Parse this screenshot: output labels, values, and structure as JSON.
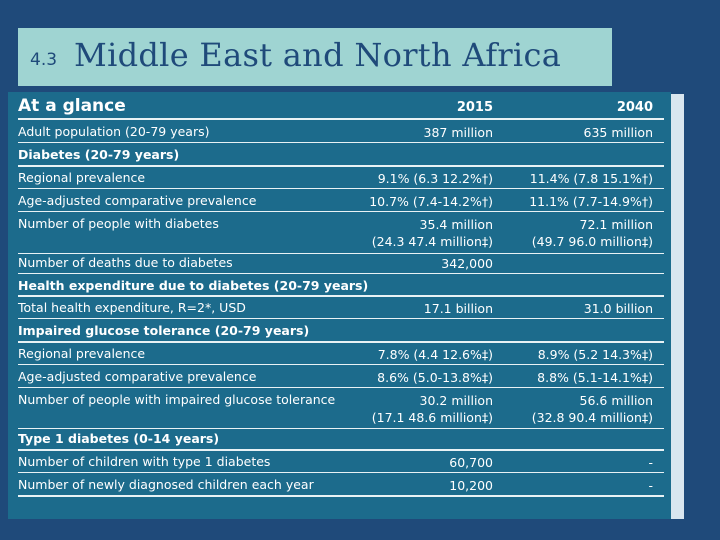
{
  "title": {
    "number": "4.3",
    "text": "Middle East and North Africa"
  },
  "table": {
    "heading": "At a glance",
    "year1": "2015",
    "year2": "2040",
    "adult_population": {
      "label": "Adult population (20-79 years)",
      "v2015": "387 million",
      "v2040": "635 million"
    },
    "diabetes_section": "Diabetes (20-79 years)",
    "regional_prevalence": {
      "label": "Regional prevalence",
      "v2015": "9.1% (6.3 12.2%†)",
      "v2040": "11.4% (7.8 15.1%†)"
    },
    "age_adjusted": {
      "label": "Age-adjusted comparative prevalence",
      "v2015": "10.7% (7.4-14.2%†)",
      "v2040": "11.1% (7.7-14.9%†)"
    },
    "people_with_diabetes": {
      "label": "Number of people with diabetes",
      "v2015_a": "35.4 million",
      "v2015_b": "(24.3 47.4 million‡)",
      "v2040_a": "72.1 million",
      "v2040_b": "(49.7 96.0 million‡)"
    },
    "deaths": {
      "label": "Number of deaths due to diabetes",
      "v2015": "342,000"
    },
    "expenditure_section": "Health expenditure due to diabetes (20-79 years)",
    "total_expenditure": {
      "label": "Total health expenditure, R=2*, USD",
      "v2015": "17.1 billion",
      "v2040": "31.0 billion"
    },
    "igt_section": "Impaired glucose tolerance (20-79 years)",
    "igt_regional": {
      "label": "Regional prevalence",
      "v2015": "7.8% (4.4 12.6%‡)",
      "v2040": "8.9% (5.2 14.3%‡)"
    },
    "igt_age_adjusted": {
      "label": "Age-adjusted comparative prevalence",
      "v2015": "8.6% (5.0-13.8%‡)",
      "v2040": "8.8% (5.1-14.1%‡)"
    },
    "igt_people": {
      "label": "Number of people with impaired glucose tolerance",
      "v2015_a": "30.2 million",
      "v2015_b": "(17.1 48.6 million‡)",
      "v2040_a": "56.6 million",
      "v2040_b": "(32.8 90.4 million‡)"
    },
    "t1_section": "Type 1 diabetes (0-14 years)",
    "t1_children": {
      "label": "Number of children with type 1 diabetes",
      "v2015": "60,700",
      "v2040": "-"
    },
    "t1_new": {
      "label": "Number of newly diagnosed children each year",
      "v2015": "10,200",
      "v2040": "-"
    }
  }
}
